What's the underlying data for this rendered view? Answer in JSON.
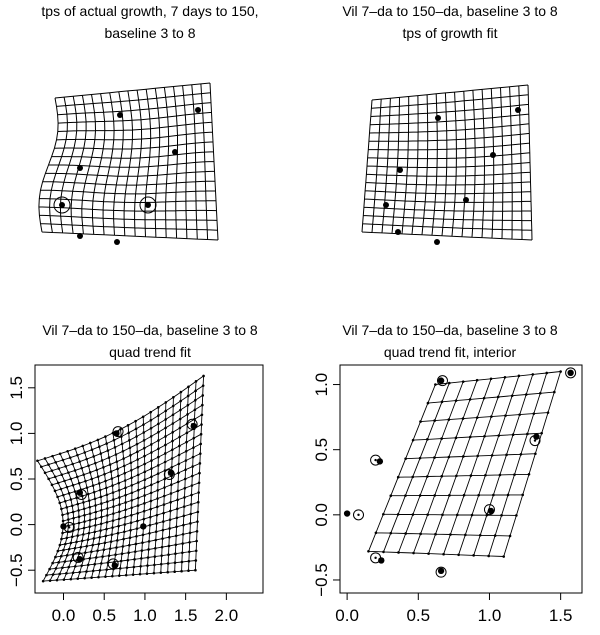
{
  "panels": [
    {
      "title_lines": [
        "tps of actual growth, 7 days to 150,",
        "baseline 3  to  8"
      ],
      "kind": "tps-grid",
      "landmarks": [
        [
          120,
          115
        ],
        [
          198,
          110
        ],
        [
          80,
          168
        ],
        [
          175,
          152
        ],
        [
          62,
          205
        ],
        [
          148,
          205
        ],
        [
          80,
          236
        ],
        [
          117,
          242
        ]
      ],
      "circled": [
        [
          62,
          205
        ],
        [
          148,
          205
        ]
      ]
    },
    {
      "title_lines": [
        "Vil 7–da to 150–da, baseline 3  to  8",
        "tps of growth fit"
      ],
      "kind": "tps-grid",
      "landmarks": [
        [
          438,
          118
        ],
        [
          518,
          110
        ],
        [
          400,
          170
        ],
        [
          493,
          155
        ],
        [
          386,
          205
        ],
        [
          466,
          200
        ],
        [
          398,
          232
        ],
        [
          437,
          242
        ]
      ],
      "circled": []
    },
    {
      "title_lines": [
        "Vil 7–da to 150–da, baseline 3  to  8",
        "quad trend fit"
      ],
      "kind": "chart-panel",
      "chart_data": {
        "type": "scatter",
        "xlim": [
          -0.35,
          2.45
        ],
        "ylim": [
          -0.75,
          1.75
        ],
        "xticks": [
          "0.0",
          "0.5",
          "1.0",
          "1.5",
          "2.0"
        ],
        "yticks": [
          "−0.5",
          "0.0",
          "0.5",
          "1.0",
          "1.5"
        ],
        "filled_points": [
          [
            0.2,
            0.35
          ],
          [
            0.65,
            1.0
          ],
          [
            1.6,
            1.08
          ],
          [
            1.32,
            0.57
          ],
          [
            0.0,
            -0.02
          ],
          [
            0.98,
            -0.02
          ],
          [
            0.2,
            -0.38
          ],
          [
            0.63,
            -0.45
          ]
        ],
        "open_points": [
          [
            0.22,
            0.33
          ],
          [
            0.67,
            1.02
          ],
          [
            1.58,
            1.1
          ],
          [
            1.3,
            0.55
          ],
          [
            0.07,
            -0.03
          ],
          [
            0.18,
            -0.36
          ],
          [
            0.61,
            -0.43
          ]
        ],
        "grid": "curvilinear-deformed"
      }
    },
    {
      "title_lines": [
        "Vil 7–da to 150–da, baseline 3  to  8",
        "quad trend fit, interior"
      ],
      "kind": "chart-panel",
      "chart_data": {
        "type": "scatter",
        "xlim": [
          -0.05,
          1.65
        ],
        "ylim": [
          -0.6,
          1.15
        ],
        "xticks": [
          "0.0",
          "0.5",
          "1.0",
          "1.5"
        ],
        "yticks": [
          "−0.5",
          "0.0",
          "0.5",
          "1.0"
        ],
        "filled_points": [
          [
            0.66,
            1.03
          ],
          [
            1.57,
            1.09
          ],
          [
            1.33,
            0.6
          ],
          [
            0.23,
            0.41
          ],
          [
            0.0,
            0.01
          ],
          [
            1.01,
            0.03
          ],
          [
            0.24,
            -0.35
          ],
          [
            0.66,
            -0.43
          ]
        ],
        "open_points": [
          [
            0.67,
            1.03
          ],
          [
            1.57,
            1.09
          ],
          [
            1.32,
            0.57
          ],
          [
            0.2,
            0.42
          ],
          [
            0.08,
            0.0
          ],
          [
            1.0,
            0.04
          ],
          [
            0.2,
            -0.33
          ],
          [
            0.66,
            -0.44
          ]
        ],
        "grid": "interior-lattice"
      }
    }
  ]
}
